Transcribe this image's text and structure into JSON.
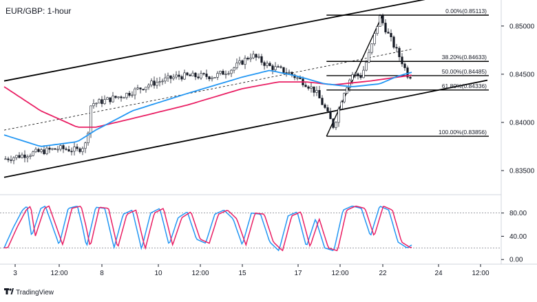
{
  "chart_data": {
    "type": "candlestick",
    "title": "EUR/GBP: 1-hour",
    "brand": "TradingView",
    "price_axis": {
      "ylim": [
        0.8325,
        0.8527
      ],
      "ticks": [
        "0.85000",
        "0.84500",
        "0.84000",
        "0.83500"
      ],
      "tick_values": [
        0.85,
        0.845,
        0.84,
        0.835
      ]
    },
    "time_axis": {
      "ticks": [
        "3",
        "12:00",
        "8",
        "10",
        "12:00",
        "15",
        "17",
        "12:00",
        "22",
        "24",
        "12:00"
      ]
    },
    "price_path": {
      "times": [
        0,
        3,
        6,
        8,
        9,
        9.5,
        10,
        13,
        16,
        19,
        23,
        25,
        27,
        29,
        31,
        33,
        34,
        35,
        36,
        37,
        38,
        39,
        40,
        41,
        42,
        43.5,
        44,
        44.5
      ],
      "prices": [
        0.8362,
        0.8368,
        0.8373,
        0.8371,
        0.8378,
        0.842,
        0.842,
        0.8428,
        0.844,
        0.8448,
        0.8448,
        0.8456,
        0.847,
        0.8458,
        0.8452,
        0.844,
        0.8432,
        0.8415,
        0.8395,
        0.843,
        0.845,
        0.8448,
        0.8475,
        0.851,
        0.849,
        0.8462,
        0.845,
        0.8448
      ]
    },
    "series": [
      {
        "name": "",
        "color": "#e91e63",
        "kind": "moving-average",
        "times": [
          0,
          4,
          8,
          10,
          14,
          20,
          26,
          30,
          33,
          36,
          40,
          44.5
        ],
        "values": [
          0.8437,
          0.8412,
          0.8395,
          0.8395,
          0.8404,
          0.8418,
          0.8435,
          0.8442,
          0.8442,
          0.8439,
          0.8443,
          0.8449
        ]
      },
      {
        "name": "",
        "color": "#2196f3",
        "kind": "moving-average",
        "times": [
          0,
          4,
          8,
          10,
          14,
          20,
          26,
          29,
          32,
          35,
          38,
          41,
          43,
          44.5
        ],
        "values": [
          0.8387,
          0.8375,
          0.838,
          0.8392,
          0.8412,
          0.843,
          0.8447,
          0.8454,
          0.8448,
          0.844,
          0.8437,
          0.844,
          0.8448,
          0.8452
        ]
      }
    ],
    "channel": {
      "upper": [
        [
          0,
          0.8443
        ],
        [
          44,
          0.8524
        ]
      ],
      "lower": [
        [
          0,
          0.8343
        ],
        [
          44,
          0.8427
        ]
      ],
      "mid": [
        [
          0,
          0.8392
        ],
        [
          44,
          0.8475
        ]
      ]
    },
    "fibonacci": {
      "start_time": 35.2,
      "end_time": 44.3,
      "swing_low": [
        35.2,
        0.83856
      ],
      "swing_high": [
        41.3,
        0.85113
      ],
      "levels": [
        {
          "label": "0.00%(0.85113)",
          "value": 0.85113
        },
        {
          "label": "38.20%(0.84633)",
          "value": 0.84633
        },
        {
          "label": "50.00%(0.84485)",
          "value": 0.84485
        },
        {
          "label": "61.80%(0.84336)",
          "value": 0.84336
        },
        {
          "label": "100.00%(0.83856)",
          "value": 0.83856
        }
      ]
    },
    "oscillator": {
      "type": "stochastic",
      "ylim": [
        -8,
        108
      ],
      "ticks": [
        "80.00",
        "40.00",
        "0.00"
      ],
      "tick_values": [
        80,
        40,
        0
      ],
      "levels": [
        80,
        20
      ],
      "k_color": "#2196f3",
      "d_color": "#e91e63",
      "times": [
        0,
        1,
        2,
        2.5,
        3,
        4,
        4.5,
        5,
        6,
        7,
        8,
        8.5,
        9,
        10,
        11,
        12,
        13,
        14,
        15,
        16,
        17,
        18,
        19,
        20,
        21,
        22,
        23,
        24,
        25,
        26,
        27,
        28,
        29,
        30,
        31,
        32,
        33,
        34,
        35,
        36,
        37,
        38,
        39,
        40,
        41,
        42,
        43,
        44,
        44.5
      ],
      "values": [
        20,
        55,
        85,
        92,
        40,
        88,
        92,
        70,
        25,
        88,
        92,
        60,
        22,
        90,
        88,
        20,
        78,
        85,
        18,
        80,
        88,
        25,
        72,
        82,
        35,
        28,
        78,
        85,
        70,
        25,
        80,
        78,
        30,
        15,
        75,
        82,
        22,
        70,
        20,
        15,
        85,
        92,
        88,
        40,
        92,
        85,
        30,
        20,
        25
      ]
    }
  }
}
